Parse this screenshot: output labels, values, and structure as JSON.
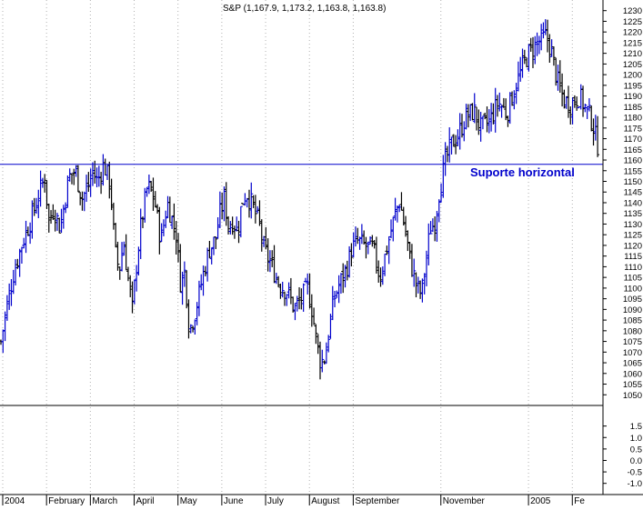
{
  "chart_data": {
    "type": "ohlc",
    "title": "S&P (1,167.9, 1,173.2, 1,163.8, 1,163.8)",
    "price_axis": {
      "min": 1045,
      "max": 1232,
      "ticks": [
        1050,
        1055,
        1060,
        1065,
        1070,
        1075,
        1080,
        1085,
        1090,
        1095,
        1100,
        1105,
        1110,
        1115,
        1120,
        1125,
        1130,
        1135,
        1140,
        1145,
        1150,
        1155,
        1160,
        1165,
        1170,
        1175,
        1180,
        1185,
        1190,
        1195,
        1200,
        1205,
        1210,
        1215,
        1220,
        1225,
        1230
      ]
    },
    "lower_axis": {
      "min": -1.25,
      "max": 2.2,
      "ticks": [
        "1.5",
        "1.0",
        "0.5",
        "0.0",
        "-0.5",
        "-1.0"
      ],
      "tick_values": [
        1.5,
        1.0,
        0.5,
        0.0,
        -0.5,
        -1.0
      ]
    },
    "x_axis": {
      "range_months": [
        0,
        13.7
      ],
      "labels": [
        {
          "text": "2004",
          "m": 0.0
        },
        {
          "text": "February",
          "m": 1.0
        },
        {
          "text": "March",
          "m": 2.0
        },
        {
          "text": "April",
          "m": 3.0
        },
        {
          "text": "May",
          "m": 4.0
        },
        {
          "text": "June",
          "m": 5.0
        },
        {
          "text": "July",
          "m": 6.0
        },
        {
          "text": "August",
          "m": 7.0
        },
        {
          "text": "September",
          "m": 8.0
        },
        {
          "text": "November",
          "m": 10.0
        },
        {
          "text": "2005",
          "m": 12.0
        },
        {
          "text": "Fe",
          "m": 13.0
        }
      ],
      "vertical_grid": true
    },
    "support_line": {
      "value": 1158,
      "label": "Suporte horizontal"
    },
    "price_path": [
      [
        0.0,
        1075
      ],
      [
        0.15,
        1093
      ],
      [
        0.3,
        1108
      ],
      [
        0.5,
        1122
      ],
      [
        0.7,
        1133
      ],
      [
        0.9,
        1146
      ],
      [
        1.0,
        1152
      ],
      [
        1.1,
        1130
      ],
      [
        1.2,
        1138
      ],
      [
        1.35,
        1128
      ],
      [
        1.55,
        1152
      ],
      [
        1.7,
        1155
      ],
      [
        1.85,
        1142
      ],
      [
        2.0,
        1148
      ],
      [
        2.1,
        1155
      ],
      [
        2.2,
        1150
      ],
      [
        2.35,
        1158
      ],
      [
        2.5,
        1148
      ],
      [
        2.6,
        1118
      ],
      [
        2.7,
        1108
      ],
      [
        2.8,
        1122
      ],
      [
        2.9,
        1105
      ],
      [
        3.0,
        1090
      ],
      [
        3.1,
        1112
      ],
      [
        3.2,
        1130
      ],
      [
        3.35,
        1148
      ],
      [
        3.5,
        1142
      ],
      [
        3.65,
        1122
      ],
      [
        3.8,
        1140
      ],
      [
        4.0,
        1125
      ],
      [
        4.1,
        1102
      ],
      [
        4.2,
        1108
      ],
      [
        4.3,
        1080
      ],
      [
        4.45,
        1090
      ],
      [
        4.6,
        1105
      ],
      [
        4.75,
        1118
      ],
      [
        4.9,
        1123
      ],
      [
        5.0,
        1135
      ],
      [
        5.1,
        1142
      ],
      [
        5.2,
        1128
      ],
      [
        5.3,
        1132
      ],
      [
        5.4,
        1126
      ],
      [
        5.5,
        1140
      ],
      [
        5.6,
        1145
      ],
      [
        5.75,
        1138
      ],
      [
        5.9,
        1130
      ],
      [
        6.0,
        1118
      ],
      [
        6.15,
        1112
      ],
      [
        6.35,
        1102
      ],
      [
        6.55,
        1098
      ],
      [
        6.7,
        1090
      ],
      [
        6.85,
        1095
      ],
      [
        7.0,
        1100
      ],
      [
        7.1,
        1090
      ],
      [
        7.2,
        1075
      ],
      [
        7.3,
        1065
      ],
      [
        7.4,
        1068
      ],
      [
        7.5,
        1082
      ],
      [
        7.6,
        1095
      ],
      [
        7.75,
        1103
      ],
      [
        7.9,
        1110
      ],
      [
        8.0,
        1118
      ],
      [
        8.15,
        1122
      ],
      [
        8.3,
        1120
      ],
      [
        8.5,
        1118
      ],
      [
        8.65,
        1105
      ],
      [
        8.8,
        1118
      ],
      [
        9.0,
        1135
      ],
      [
        9.1,
        1141
      ],
      [
        9.2,
        1130
      ],
      [
        9.35,
        1112
      ],
      [
        9.5,
        1100
      ],
      [
        9.6,
        1097
      ],
      [
        9.7,
        1112
      ],
      [
        9.8,
        1128
      ],
      [
        9.9,
        1130
      ],
      [
        10.0,
        1145
      ],
      [
        10.15,
        1160
      ],
      [
        10.3,
        1168
      ],
      [
        10.45,
        1172
      ],
      [
        10.6,
        1180
      ],
      [
        10.8,
        1183
      ],
      [
        10.95,
        1175
      ],
      [
        11.15,
        1178
      ],
      [
        11.35,
        1187
      ],
      [
        11.55,
        1182
      ],
      [
        11.75,
        1195
      ],
      [
        11.95,
        1206
      ],
      [
        12.05,
        1210
      ],
      [
        12.25,
        1215
      ],
      [
        12.45,
        1218
      ],
      [
        12.55,
        1212
      ],
      [
        12.7,
        1197
      ],
      [
        12.85,
        1188
      ],
      [
        13.0,
        1186
      ],
      [
        13.2,
        1190
      ],
      [
        13.35,
        1184
      ],
      [
        13.5,
        1178
      ],
      [
        13.6,
        1168
      ],
      [
        13.65,
        1166
      ]
    ]
  }
}
